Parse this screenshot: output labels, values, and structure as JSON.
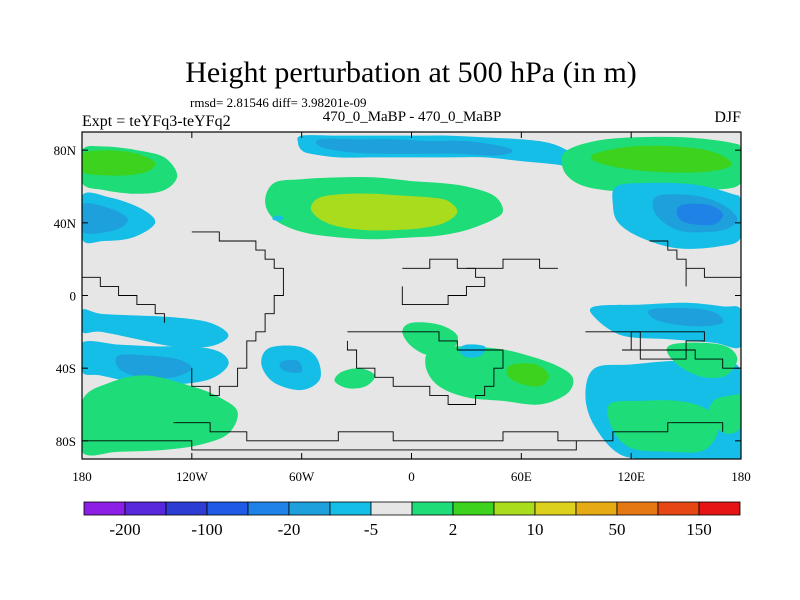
{
  "chart_data": {
    "type": "heatmap",
    "title": "Height perturbation at 500 hPa (in m)",
    "subtitle": "rmsd= 2.81546 diff= 3.98201e-09",
    "center_label": "470_0_MaBP - 470_0_MaBP",
    "left_label": "Expt = teYFq3-teYFq2",
    "right_label": "DJF",
    "x_ticks": [
      {
        "value": -180,
        "label": "180"
      },
      {
        "value": -120,
        "label": "120W"
      },
      {
        "value": -60,
        "label": "60W"
      },
      {
        "value": 0,
        "label": "0"
      },
      {
        "value": 60,
        "label": "60E"
      },
      {
        "value": 120,
        "label": "120E"
      },
      {
        "value": 180,
        "label": "180"
      }
    ],
    "y_ticks": [
      {
        "value": 80,
        "label": "80N"
      },
      {
        "value": 40,
        "label": "40N"
      },
      {
        "value": 0,
        "label": "0"
      },
      {
        "value": -40,
        "label": "40S"
      },
      {
        "value": -80,
        "label": "80S"
      }
    ],
    "xlim": [
      -180,
      180
    ],
    "ylim": [
      -90,
      90
    ],
    "colorbar": {
      "colors": [
        "#8c1ee6",
        "#5a28dc",
        "#2d3cd2",
        "#1e5ae6",
        "#1e82e6",
        "#1ea0dc",
        "#14bee6",
        "#e6e6e6",
        "#1edc78",
        "#3cd21e",
        "#aadc1e",
        "#dcd21e",
        "#e6aa14",
        "#e67814",
        "#e64614",
        "#e61414"
      ],
      "labels": [
        {
          "value": "-200",
          "boundary": 1
        },
        {
          "value": "-100",
          "boundary": 3
        },
        {
          "value": "-20",
          "boundary": 5
        },
        {
          "value": "-5",
          "boundary": 7
        },
        {
          "value": "2",
          "boundary": 9
        },
        {
          "value": "10",
          "boundary": 11
        },
        {
          "value": "50",
          "boundary": 13
        },
        {
          "value": "150",
          "boundary": 15
        }
      ]
    },
    "fields": [
      {
        "name": "polar-arc-north",
        "color_index": 6,
        "lon": [
          -60,
          -40,
          -20,
          0,
          20,
          40,
          60,
          75,
          85,
          90,
          90,
          80,
          60,
          40,
          20,
          0,
          -20,
          -40,
          -55,
          -60,
          -62
        ],
        "lat": [
          88,
          88,
          88,
          88,
          88,
          87,
          86,
          84,
          80,
          76,
          70,
          72,
          74,
          76,
          76,
          76,
          76,
          76,
          78,
          80,
          84
        ]
      },
      {
        "name": "polar-arc-inner",
        "color_index": 5,
        "lon": [
          -50,
          -30,
          -10,
          10,
          30,
          50,
          55,
          45,
          25,
          5,
          -15,
          -35,
          -50
        ],
        "lat": [
          86,
          86,
          86,
          85,
          85,
          82,
          79,
          77,
          78,
          78,
          78,
          79,
          82
        ]
      },
      {
        "name": "north-atlantic-band-outer",
        "color_index": 8,
        "lon": [
          -75,
          -60,
          -40,
          -20,
          0,
          15,
          30,
          45,
          50,
          45,
          30,
          15,
          0,
          -20,
          -40,
          -60,
          -75,
          -80
        ],
        "lat": [
          62,
          64,
          65,
          65,
          63,
          62,
          60,
          55,
          47,
          42,
          36,
          33,
          32,
          31,
          32,
          35,
          42,
          52
        ]
      },
      {
        "name": "north-atlantic-band-core",
        "color_index": 10,
        "lon": [
          -50,
          -35,
          -20,
          -5,
          10,
          20,
          25,
          18,
          5,
          -10,
          -25,
          -40,
          -50,
          -55
        ],
        "lat": [
          54,
          56,
          56,
          55,
          54,
          52,
          46,
          40,
          37,
          36,
          36,
          38,
          42,
          48
        ]
      },
      {
        "name": "pacific-nw-outer",
        "color_index": 8,
        "lon": [
          -180,
          -168,
          -150,
          -135,
          -128,
          -135,
          -150,
          -168,
          -180
        ],
        "lat": [
          80,
          82,
          80,
          76,
          66,
          58,
          56,
          58,
          62
        ]
      },
      {
        "name": "pacific-nw-inner",
        "color_index": 9,
        "lon": [
          -180,
          -165,
          -150,
          -140,
          -145,
          -160,
          -180
        ],
        "lat": [
          78,
          80,
          78,
          73,
          68,
          66,
          68
        ]
      },
      {
        "name": "pacific-w-lobe",
        "color_index": 6,
        "lon": [
          -180,
          -165,
          -148,
          -140,
          -152,
          -168,
          -180
        ],
        "lat": [
          55,
          54,
          48,
          40,
          32,
          30,
          31
        ]
      },
      {
        "name": "pacific-w-lobe-core",
        "color_index": 5,
        "lon": [
          -180,
          -165,
          -155,
          -162,
          -180
        ],
        "lat": [
          50,
          48,
          42,
          36,
          35
        ]
      },
      {
        "name": "asia-north-outer",
        "color_index": 8,
        "lon": [
          85,
          100,
          120,
          150,
          175,
          180,
          180,
          165,
          140,
          115,
          95,
          85,
          82
        ],
        "lat": [
          80,
          85,
          87,
          87,
          84,
          80,
          62,
          58,
          56,
          57,
          60,
          66,
          74
        ]
      },
      {
        "name": "asia-north-inner",
        "color_index": 9,
        "lon": [
          100,
          120,
          145,
          165,
          175,
          160,
          135,
          115,
          100
        ],
        "lat": [
          78,
          82,
          82,
          79,
          72,
          68,
          68,
          70,
          74
        ]
      },
      {
        "name": "asia-pacific-lobe",
        "color_index": 6,
        "lon": [
          112,
          130,
          155,
          175,
          180,
          180,
          168,
          145,
          125,
          113,
          110
        ],
        "lat": [
          60,
          62,
          61,
          56,
          52,
          32,
          27,
          26,
          32,
          40,
          50
        ]
      },
      {
        "name": "asia-pacific-lobe-core",
        "color_index": 5,
        "lon": [
          135,
          155,
          170,
          178,
          170,
          150,
          138,
          132
        ],
        "lat": [
          55,
          55,
          50,
          42,
          36,
          35,
          40,
          48
        ]
      },
      {
        "name": "asia-pacific-lobe-deep",
        "color_index": 4,
        "lon": [
          148,
          162,
          170,
          165,
          150,
          145
        ],
        "lat": [
          50,
          50,
          45,
          39,
          40,
          45
        ]
      },
      {
        "name": "small-blue-70w",
        "color_index": 6,
        "lon": [
          -74,
          -70,
          -72,
          -76
        ],
        "lat": [
          44,
          43,
          41,
          42
        ]
      },
      {
        "name": "se-pacific-band",
        "color_index": 6,
        "lon": [
          -180,
          -170,
          -150,
          -130,
          -110,
          -100,
          -110,
          -130,
          -150,
          -170,
          -180
        ],
        "lat": [
          -8,
          -10,
          -11,
          -12,
          -15,
          -22,
          -28,
          -28,
          -24,
          -20,
          -20
        ]
      },
      {
        "name": "south-pacific-center",
        "color_index": 6,
        "lon": [
          -180,
          -160,
          -140,
          -120,
          -105,
          -100,
          -110,
          -130,
          -150,
          -170,
          -180
        ],
        "lat": [
          -26,
          -27,
          -28,
          -28,
          -31,
          -38,
          -46,
          -49,
          -48,
          -44,
          -42
        ]
      },
      {
        "name": "south-pacific-center-core",
        "color_index": 5,
        "lon": [
          -160,
          -145,
          -128,
          -120,
          -130,
          -148,
          -160
        ],
        "lat": [
          -33,
          -33,
          -35,
          -40,
          -45,
          -45,
          -40
        ]
      },
      {
        "name": "south-polar-green-w",
        "color_index": 8,
        "lon": [
          -180,
          -165,
          -145,
          -120,
          -105,
          -95,
          -100,
          -115,
          -135,
          -160,
          -180
        ],
        "lat": [
          -58,
          -48,
          -44,
          -50,
          -56,
          -64,
          -76,
          -82,
          -85,
          -86,
          -86
        ]
      },
      {
        "name": "south-60w-blob",
        "color_index": 6,
        "lon": [
          -78,
          -62,
          -52,
          -50,
          -60,
          -75,
          -82
        ],
        "lat": [
          -29,
          -28,
          -34,
          -46,
          -52,
          -48,
          -38
        ]
      },
      {
        "name": "south-60w-core",
        "color_index": 5,
        "lon": [
          -70,
          -62,
          -60,
          -68,
          -72
        ],
        "lat": [
          -36,
          -36,
          -42,
          -42,
          -39
        ]
      },
      {
        "name": "south-atlantic-green-small",
        "color_index": 8,
        "lon": [
          -38,
          -28,
          -20,
          -25,
          -35,
          -42
        ],
        "lat": [
          -42,
          -40,
          -44,
          -50,
          -51,
          -47
        ]
      },
      {
        "name": "south-indian-green",
        "color_index": 8,
        "lon": [
          10,
          25,
          45,
          60,
          78,
          88,
          85,
          70,
          50,
          30,
          15,
          8
        ],
        "lat": [
          -30,
          -28,
          -29,
          -32,
          -38,
          -45,
          -54,
          -60,
          -58,
          -56,
          -50,
          -40
        ]
      },
      {
        "name": "south-indian-core",
        "color_index": 9,
        "lon": [
          55,
          68,
          75,
          70,
          58,
          52
        ],
        "lat": [
          -38,
          -38,
          -44,
          -50,
          -48,
          -43
        ]
      },
      {
        "name": "south-40e-blue",
        "color_index": 6,
        "lon": [
          30,
          40,
          38,
          30,
          26
        ],
        "lat": [
          -27,
          -28,
          -33,
          -34,
          -30
        ]
      },
      {
        "name": "south-pacific-e-outer",
        "color_index": 6,
        "lon": [
          100,
          120,
          145,
          165,
          180,
          180,
          165,
          140,
          115,
          100,
          95
        ],
        "lat": [
          -40,
          -38,
          -36,
          -38,
          -42,
          -90,
          -90,
          -90,
          -88,
          -72,
          -55
        ]
      },
      {
        "name": "south-pacific-e-green",
        "color_index": 8,
        "lon": [
          108,
          125,
          145,
          160,
          168,
          160,
          140,
          120,
          110
        ],
        "lat": [
          -60,
          -58,
          -58,
          -62,
          -72,
          -85,
          -86,
          -84,
          -74
        ]
      },
      {
        "name": "australia-green",
        "color_index": 8,
        "lon": [
          142,
          158,
          172,
          178,
          172,
          160,
          148,
          140
        ],
        "lat": [
          -27,
          -26,
          -28,
          -35,
          -44,
          -45,
          -40,
          -32
        ]
      },
      {
        "name": "far-se-green",
        "color_index": 8,
        "lon": [
          165,
          175,
          180,
          180,
          172,
          162
        ],
        "lat": [
          -58,
          -55,
          -56,
          -72,
          -76,
          -68
        ]
      },
      {
        "name": "eq-blue-east",
        "color_index": 6,
        "lon": [
          100,
          125,
          150,
          170,
          180,
          180,
          165,
          140,
          115,
          100
        ],
        "lat": [
          -6,
          -5,
          -4,
          -6,
          -8,
          -28,
          -26,
          -24,
          -22,
          -12
        ]
      },
      {
        "name": "eq-blue-east-core",
        "color_index": 5,
        "lon": [
          130,
          150,
          165,
          170,
          155,
          135
        ],
        "lat": [
          -8,
          -7,
          -9,
          -15,
          -17,
          -14
        ]
      },
      {
        "name": "africa-south-green",
        "color_index": 8,
        "lon": [
          0,
          15,
          25,
          22,
          10,
          0,
          -5
        ],
        "lat": [
          -15,
          -16,
          -22,
          -30,
          -33,
          -28,
          -20
        ]
      }
    ],
    "coastlines": [
      {
        "lon": [
          -120,
          -105,
          -95,
          -85,
          -80,
          -75,
          -70,
          -68,
          -72,
          -75,
          -80,
          -85,
          -90,
          -92,
          -97,
          -105,
          -112,
          -118,
          -120
        ],
        "lat": [
          34,
          32,
          28,
          24,
          20,
          15,
          12,
          5,
          -2,
          -10,
          -18,
          -25,
          -32,
          -40,
          -48,
          -54,
          -50,
          -45,
          -38
        ]
      },
      {
        "lon": [
          -35,
          -20,
          -5,
          10,
          15,
          25,
          35,
          45,
          50,
          45,
          40,
          35,
          30,
          20,
          10,
          0,
          -10,
          -20,
          -30,
          -35
        ],
        "lat": [
          -20,
          -18,
          -18,
          -20,
          -24,
          -28,
          -30,
          -32,
          -40,
          -48,
          -55,
          -60,
          -58,
          -55,
          -52,
          -48,
          -45,
          -40,
          -32,
          -26
        ]
      },
      {
        "lon": [
          -5,
          10,
          25,
          35,
          38,
          30,
          20,
          5,
          -5
        ],
        "lat": [
          15,
          18,
          17,
          12,
          5,
          -2,
          -6,
          -4,
          6
        ]
      },
      {
        "lon": [
          -130,
          -110,
          -90,
          -65,
          -40,
          -10,
          20,
          50,
          80,
          110,
          140,
          170
        ],
        "lat": [
          -72,
          -76,
          -80,
          -78,
          -76,
          -80,
          -78,
          -76,
          -78,
          -74,
          -72,
          -74
        ]
      },
      {
        "lon": [
          -180,
          -120,
          -60,
          0,
          60,
          90
        ],
        "lat": [
          -82,
          -83,
          -84,
          -84,
          -84,
          -80
        ]
      },
      {
        "lon": [
          150,
          160,
          170,
          178,
          180
        ],
        "lat": [
          15,
          12,
          8,
          4,
          0
        ]
      },
      {
        "lon": [
          130,
          140,
          145,
          148,
          150
        ],
        "lat": [
          28,
          24,
          20,
          12,
          5
        ]
      },
      {
        "lon": [
          30,
          50,
          70,
          80
        ],
        "lat": [
          15,
          18,
          14,
          16
        ]
      },
      {
        "lon": [
          -180,
          -172,
          -165,
          -158,
          -150,
          -142,
          -135
        ],
        "lat": [
          8,
          5,
          4,
          0,
          -4,
          -8,
          -14
        ]
      },
      {
        "lon": [
          95,
          110,
          125,
          140,
          155,
          170,
          178
        ],
        "lat": [
          -18,
          -22,
          -28,
          -32,
          -36,
          -42,
          -46
        ]
      },
      {
        "lon": [
          120,
          135,
          150,
          158,
          152,
          140,
          125,
          115,
          118
        ],
        "lat": [
          -20,
          -18,
          -18,
          -26,
          -34,
          -36,
          -32,
          -28,
          -22
        ]
      }
    ]
  }
}
